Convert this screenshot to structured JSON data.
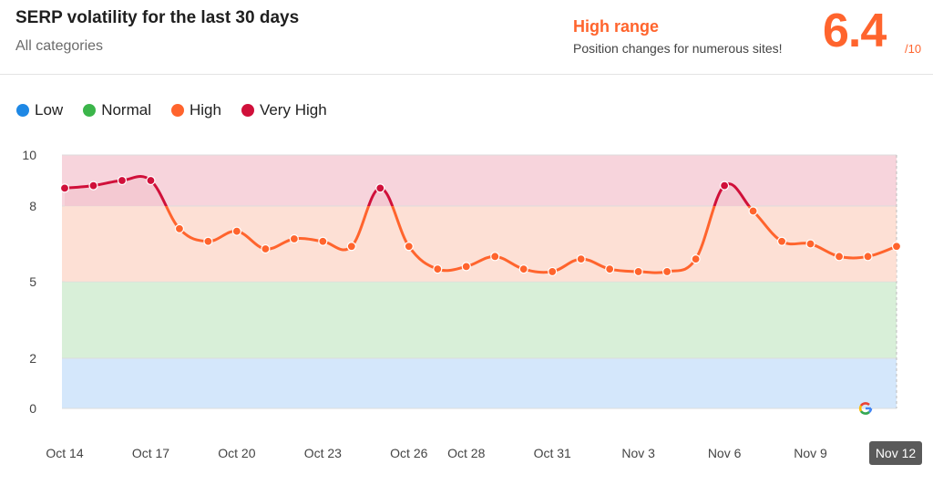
{
  "header": {
    "title": "SERP volatility for the last 30 days",
    "subtitle": "All categories",
    "range_label": "High range",
    "range_desc": "Position changes for numerous sites!",
    "score": "6.4",
    "score_max": "/10"
  },
  "legend": [
    {
      "label": "Low",
      "color": "#1e88e5"
    },
    {
      "label": "Normal",
      "color": "#3bb54a"
    },
    {
      "label": "High",
      "color": "#ff642d"
    },
    {
      "label": "Very High",
      "color": "#d0103a"
    }
  ],
  "chart_data": {
    "type": "line",
    "title": "",
    "xlabel": "",
    "ylabel": "",
    "ylim": [
      0,
      10
    ],
    "y_ticks": [
      0,
      2,
      5,
      8,
      10
    ],
    "bands": [
      {
        "name": "Low",
        "from": 0,
        "to": 2,
        "color": "#d4e7fb"
      },
      {
        "name": "Normal",
        "from": 2,
        "to": 5,
        "color": "#d8efd8"
      },
      {
        "name": "High",
        "from": 5,
        "to": 8,
        "color": "#fde0d5"
      },
      {
        "name": "Very High",
        "from": 8,
        "to": 10,
        "color": "#f7d4dc"
      }
    ],
    "x_labels": [
      "Oct 14",
      "Oct 17",
      "Oct 20",
      "Oct 23",
      "Oct 26",
      "Oct 28",
      "Oct 31",
      "Nov 3",
      "Nov 6",
      "Nov 9",
      "Nov 12"
    ],
    "highlighted_x_label": "Nov 12",
    "dates": [
      "Oct 14",
      "Oct 15",
      "Oct 16",
      "Oct 17",
      "Oct 18",
      "Oct 19",
      "Oct 20",
      "Oct 21",
      "Oct 22",
      "Oct 23",
      "Oct 24",
      "Oct 25",
      "Oct 26",
      "Oct 27",
      "Oct 28",
      "Oct 29",
      "Oct 30",
      "Oct 31",
      "Nov 1",
      "Nov 2",
      "Nov 3",
      "Nov 4",
      "Nov 5",
      "Nov 6",
      "Nov 7",
      "Nov 8",
      "Nov 9",
      "Nov 10",
      "Nov 11",
      "Nov 12"
    ],
    "values": [
      8.7,
      8.8,
      9.0,
      9.0,
      7.1,
      6.6,
      7.0,
      6.3,
      6.7,
      6.6,
      6.4,
      8.7,
      6.4,
      5.5,
      5.6,
      6.0,
      5.5,
      5.4,
      5.9,
      5.5,
      5.4,
      5.4,
      5.9,
      8.8,
      7.8,
      6.6,
      6.5,
      6.0,
      6.0,
      6.4
    ],
    "line_colors": {
      "high": "#ff642d",
      "very_high": "#d0103a"
    },
    "watermark_icon": "google-icon"
  }
}
